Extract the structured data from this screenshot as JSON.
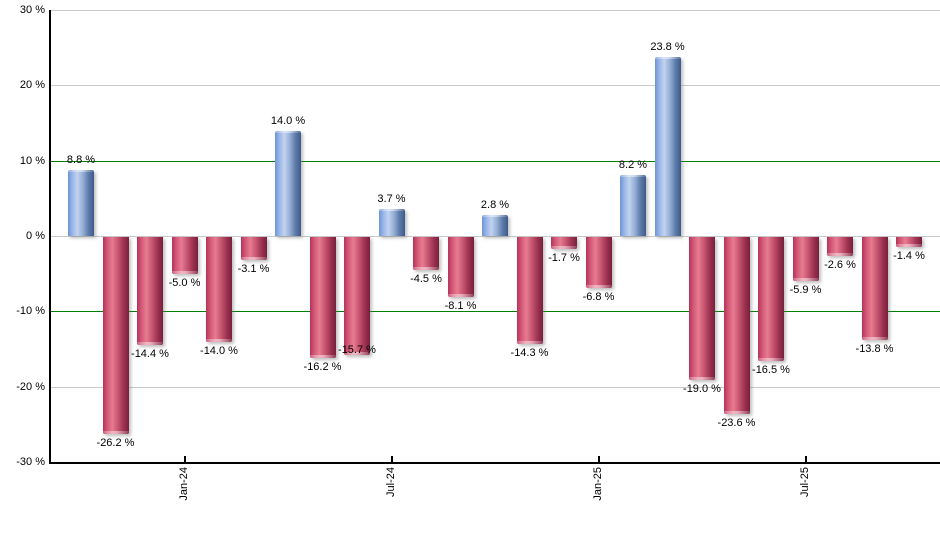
{
  "page": {
    "background": "#ffffff"
  },
  "chart_data": {
    "type": "bar",
    "title": "",
    "xlabel": "",
    "ylabel": "",
    "unit": "%",
    "ylim": [
      -30,
      30
    ],
    "grid": true,
    "grid_color": "#c9c9c9",
    "axis_color": "#000000",
    "values": [
      8.8,
      -26.2,
      -14.4,
      -5.0,
      -14.0,
      -3.1,
      14.0,
      -16.2,
      -15.7,
      3.7,
      -4.5,
      -8.1,
      2.8,
      -14.3,
      -1.7,
      -6.8,
      8.2,
      23.8,
      -19.0,
      -23.6,
      -16.5,
      -5.9,
      -2.6,
      -13.8,
      -1.4
    ],
    "labels": [
      "8.8 %",
      "-26.2 %",
      "-14.4 %",
      "-5.0 %",
      "-14.0 %",
      "-3.1 %",
      "14.0 %",
      "-16.2 %",
      "-15.7 %",
      "3.7 %",
      "-4.5 %",
      "-8.1 %",
      "2.8 %",
      "-14.3 %",
      "-1.7 %",
      "-6.8 %",
      "8.2 %",
      "23.8 %",
      "-19.0 %",
      "-23.6 %",
      "-16.5 %",
      "-5.9 %",
      "-2.6 %",
      "-13.8 %",
      "-1.4 %"
    ],
    "positive_color": "#8aa9dd",
    "negative_color": "#cf4a68",
    "ytick_values": [
      30,
      20,
      10,
      0,
      -10,
      -20,
      -30
    ],
    "ytick_labels": [
      "30 %",
      "20 %",
      "10 %",
      "0 %",
      "-10 %",
      "-20 %",
      "-30 %"
    ],
    "xticks": [
      {
        "label": "Jan-24",
        "bar_index": 3
      },
      {
        "label": "Jul-24",
        "bar_index": 9
      },
      {
        "label": "Jan-25",
        "bar_index": 15
      },
      {
        "label": "Jul-25",
        "bar_index": 21
      }
    ],
    "reference_lines": [
      {
        "value": 10,
        "color": "#008000"
      },
      {
        "value": -10,
        "color": "#008000"
      }
    ],
    "legend": null,
    "label_y_offsets": {
      "8": -14
    }
  }
}
